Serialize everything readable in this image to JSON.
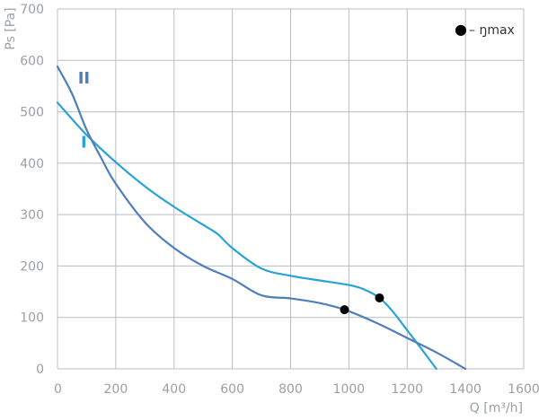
{
  "chart_data": {
    "type": "line",
    "xlabel": "Q [m³/h]",
    "ylabel": "Ps [Pa]",
    "xlim": [
      0,
      1600
    ],
    "ylim": [
      0,
      700
    ],
    "x_ticks": [
      0,
      200,
      400,
      600,
      800,
      1000,
      1200,
      1400,
      1600
    ],
    "y_ticks": [
      0,
      100,
      200,
      300,
      400,
      500,
      600,
      700
    ],
    "grid": true,
    "legend": {
      "symbol": "●",
      "text": "– ŋmax",
      "placement": "top-right"
    },
    "series": [
      {
        "label": "I",
        "color": "#29a3d6",
        "label_at": [
          80,
          430
        ],
        "points": [
          [
            0,
            518
          ],
          [
            100,
            455
          ],
          [
            200,
            402
          ],
          [
            300,
            355
          ],
          [
            400,
            315
          ],
          [
            500,
            280
          ],
          [
            550,
            262
          ],
          [
            600,
            235
          ],
          [
            700,
            195
          ],
          [
            800,
            181
          ],
          [
            900,
            172
          ],
          [
            1000,
            163
          ],
          [
            1050,
            155
          ],
          [
            1105,
            138
          ],
          [
            1150,
            112
          ],
          [
            1200,
            75
          ],
          [
            1250,
            38
          ],
          [
            1300,
            0
          ]
        ],
        "eta_max": [
          1105,
          138
        ]
      },
      {
        "label": "II",
        "color": "#4f7fb9",
        "label_at": [
          70,
          555
        ],
        "points": [
          [
            0,
            588
          ],
          [
            50,
            535
          ],
          [
            100,
            465
          ],
          [
            150,
            410
          ],
          [
            200,
            360
          ],
          [
            300,
            285
          ],
          [
            400,
            235
          ],
          [
            500,
            200
          ],
          [
            600,
            175
          ],
          [
            700,
            143
          ],
          [
            800,
            137
          ],
          [
            900,
            128
          ],
          [
            985,
            115
          ],
          [
            1100,
            88
          ],
          [
            1200,
            60
          ],
          [
            1300,
            32
          ],
          [
            1400,
            0
          ]
        ],
        "eta_max": [
          985,
          115
        ]
      }
    ]
  }
}
